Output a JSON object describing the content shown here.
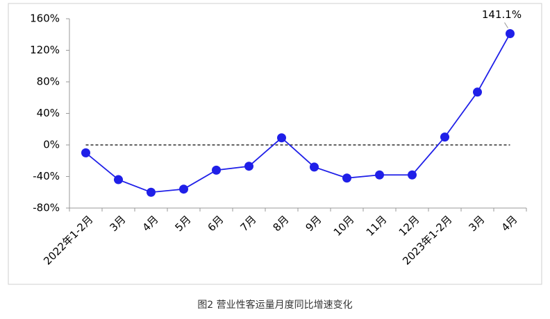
{
  "chart_data": {
    "type": "line",
    "title": "图2 营业性客运量月度同比增速变化",
    "categories": [
      "2022年1-2月",
      "3月",
      "4月",
      "5月",
      "6月",
      "7月",
      "8月",
      "9月",
      "10月",
      "11月",
      "12月",
      "2023年1-2月",
      "3月",
      "4月"
    ],
    "series": [
      {
        "name": null,
        "color": "#1f1fe8",
        "values": [
          -10,
          -44,
          -60,
          -56,
          -32,
          -27,
          9,
          -28,
          -42,
          -38,
          -38,
          10,
          67,
          141.1
        ],
        "value_labels": [
          null,
          null,
          null,
          null,
          null,
          null,
          null,
          null,
          null,
          null,
          null,
          null,
          null,
          "141.1%"
        ]
      }
    ],
    "ylim": [
      -80,
      160
    ],
    "yticks": [
      {
        "value": -80,
        "label": "-80%"
      },
      {
        "value": -40,
        "label": "-40%"
      },
      {
        "value": 0,
        "label": "0%"
      },
      {
        "value": 40,
        "label": "40%"
      },
      {
        "value": 80,
        "label": "80%"
      },
      {
        "value": 120,
        "label": "120%"
      },
      {
        "value": 160,
        "label": "160%"
      }
    ],
    "reference_line": 0,
    "grid": false
  }
}
